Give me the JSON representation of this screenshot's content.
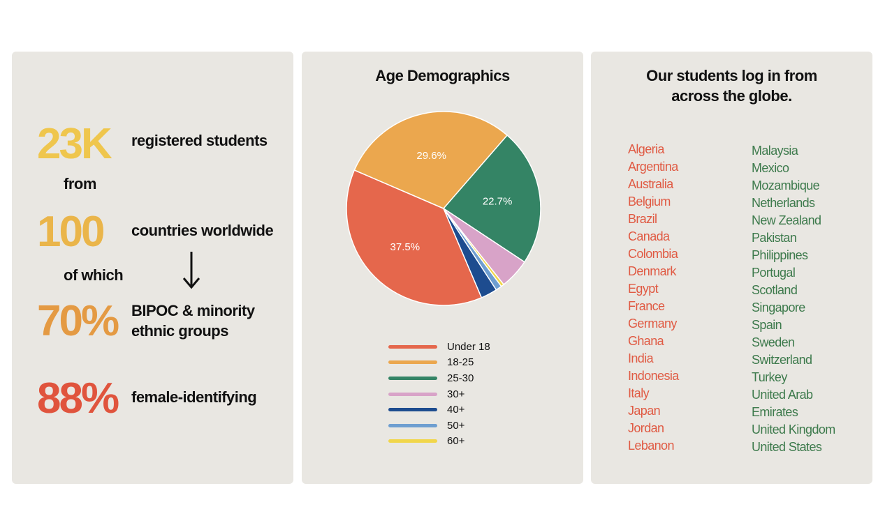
{
  "stats": {
    "students_number": "23K",
    "students_label": "registered students",
    "from_label": "from",
    "countries_number": "100",
    "countries_label": "countries worldwide",
    "of_which_label": "of which",
    "bipoc_number": "70%",
    "bipoc_label_line1": "BIPOC & minority",
    "bipoc_label_line2": "ethnic groups",
    "female_number": "88%",
    "female_label": "female-identifying",
    "colors": {
      "students": "#efc64d",
      "countries": "#eab54a",
      "bipoc": "#e49a43",
      "female": "#e0543d"
    }
  },
  "chart_data": {
    "type": "pie",
    "title": "Age Demographics",
    "slices": [
      {
        "label": "Under 18",
        "value": 37.5,
        "color": "#e5674c",
        "show_label": true
      },
      {
        "label": "18-25",
        "value": 29.6,
        "color": "#eba74e",
        "show_label": true
      },
      {
        "label": "25-30",
        "value": 22.7,
        "color": "#348465",
        "show_label": true
      },
      {
        "label": "30+",
        "value": 5.0,
        "color": "#d8a3c8",
        "show_label": false
      },
      {
        "label": "60+",
        "value": 0.5,
        "color": "#f1d64a",
        "show_label": false
      },
      {
        "label": "50+",
        "value": 1.0,
        "color": "#6e9ed0",
        "show_label": false
      },
      {
        "label": "40+",
        "value": 2.7,
        "color": "#1d4c8f",
        "show_label": false
      }
    ],
    "legend": [
      "Under 18",
      "18-25",
      "25-30",
      "30+",
      "40+",
      "50+",
      "60+"
    ],
    "legend_colors": [
      "#e5674c",
      "#eba74e",
      "#348465",
      "#d8a3c8",
      "#1d4c8f",
      "#6e9ed0",
      "#f1d64a"
    ],
    "legend_position": "bottom"
  },
  "countries": {
    "title_line1": "Our students log in from",
    "title_line2": "across the globe.",
    "left_color": "#e05a43",
    "right_color": "#3d7a4c",
    "left": [
      "Algeria",
      "Argentina",
      "Australia",
      "Belgium",
      "Brazil",
      "Canada",
      "Colombia",
      "Denmark",
      "Egypt",
      "France",
      "Germany",
      "Ghana",
      "India",
      "Indonesia",
      "Italy",
      "Japan",
      "Jordan",
      "Lebanon"
    ],
    "right": [
      "Malaysia",
      "Mexico",
      "Mozambique",
      "Netherlands",
      "New Zealand",
      "Pakistan",
      "Philippines",
      "Portugal",
      "Scotland",
      "Singapore",
      "Spain",
      "Sweden",
      "Switzerland",
      "Turkey",
      "United Arab",
      "Emirates",
      "United Kingdom",
      "United States"
    ]
  }
}
